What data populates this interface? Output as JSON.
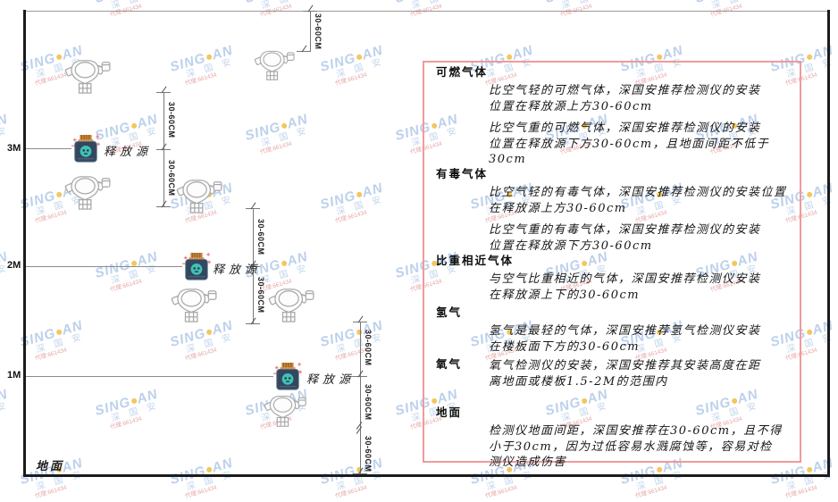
{
  "diagram": {
    "height_labels": [
      "3M",
      "2M",
      "1M"
    ],
    "ground_label": "地面",
    "release_source_label": "释放源",
    "dimension_label": "30-60CM",
    "colors": {
      "panel_border": "#f09a9a",
      "release_source_body": "#33475e",
      "release_source_cap": "#c8833a",
      "release_source_face": "#3fc3b6",
      "detector_outline": "#a8a8a8"
    }
  },
  "panel": {
    "sections": [
      {
        "heading": "可燃气体",
        "paras": [
          {
            "lines": [
              "比空气轻的可燃气体，深国安推荐检测仪的安装",
              "位置在释放源上方30-60cm"
            ]
          },
          {
            "lines": [
              "比空气重的可燃气体，深国安推荐检测仪的安装",
              "位置在释放源下方30-60cm，且地面间距不低于",
              "30cm"
            ]
          }
        ]
      },
      {
        "heading": "有毒气体",
        "paras": [
          {
            "lines": [
              "比空气轻的有毒气体，深国安推荐检测仪的安装位置",
              "在释放源上方30-60cm"
            ]
          },
          {
            "lines": [
              "比空气重的有毒气体，深国安推荐检测仪的安装",
              "位置在释放源下方30-60cm"
            ]
          }
        ]
      },
      {
        "heading": "比重相近气体",
        "paras": [
          {
            "lines": [
              "与空气比重相近的气体，深国安推荐检测仪安装",
              "在释放源上下的30-60cm"
            ]
          }
        ]
      },
      {
        "heading": "氢气",
        "paras": [
          {
            "lines": [
              "氢气是最轻的气体，深国安推荐氢气检测仪安装",
              "在楼板面下方的30-60cm"
            ]
          }
        ]
      },
      {
        "heading": "氧气",
        "paras": [
          {
            "lines": [
              "氧气检测仪的安装，深国安推荐其安装高度在距",
              "离地面或楼板1.5-2M的范围内"
            ]
          }
        ]
      },
      {
        "heading": "地面",
        "paras": [
          {
            "lines": [
              "检测仪地面间距，深国安推荐在30-60cm，且不得",
              "小于30cm，因为过低容易水溅腐蚀等，容易对检",
              "测仪造成伤害"
            ]
          }
        ]
      }
    ]
  },
  "watermark": {
    "brand_left": "SING",
    "brand_right": "AN",
    "sub": "深 国 安",
    "red_text": "代理:661434"
  }
}
